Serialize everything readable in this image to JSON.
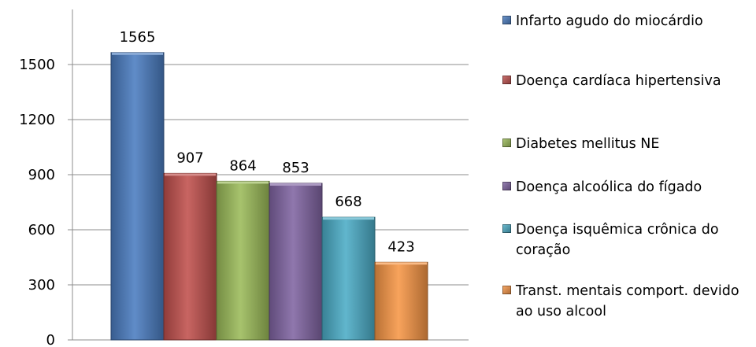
{
  "chart_data": {
    "type": "bar",
    "categories": [
      "Infarto agudo do miocárdio",
      "Doença cardíaca hipertensiva",
      "Diabetes mellitus NE",
      "Doença alcoólica do fígado",
      "Doença isquêmica crônica do coração",
      "Transt. mentais comport. devido ao uso alcool"
    ],
    "values": [
      1565,
      907,
      864,
      853,
      668,
      423
    ],
    "data_labels": [
      "1565",
      "907",
      "864",
      "853",
      "668",
      "423"
    ],
    "colors": [
      "#4a7cc0",
      "#c0504d",
      "#9bbb59",
      "#8064a2",
      "#4bacc6",
      "#f79646"
    ],
    "title": "",
    "xlabel": "",
    "ylabel": "",
    "ylim": [
      0,
      1800
    ],
    "yticks": [
      0,
      300,
      600,
      900,
      1200,
      1500
    ],
    "ytick_labels": [
      "0",
      "300",
      "600",
      "900",
      "1200",
      "1500"
    ],
    "grid": true,
    "legend_position": "right"
  }
}
